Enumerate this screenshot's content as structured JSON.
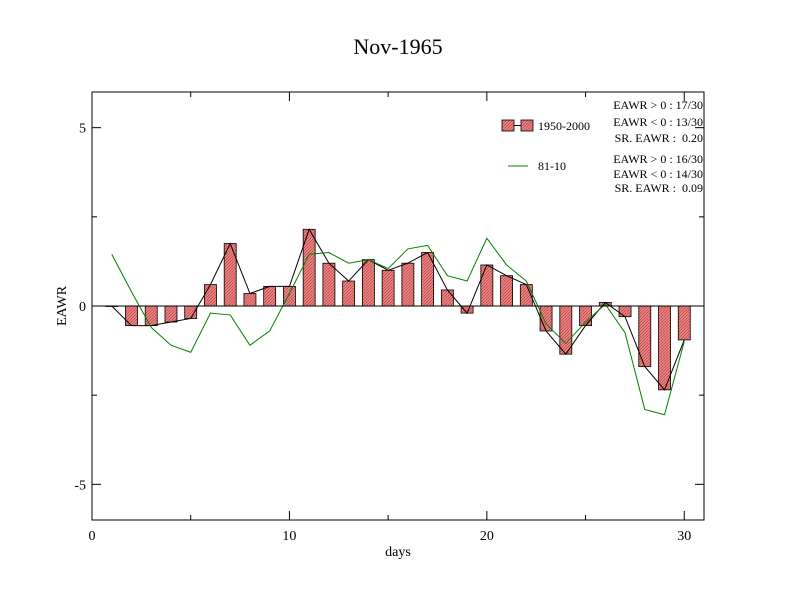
{
  "chart_data": {
    "type": "bar",
    "title": "Nov-1965",
    "xlabel": "days",
    "ylabel": "EAWR",
    "xlim": [
      0,
      31
    ],
    "ylim": [
      -6,
      6
    ],
    "x_ticks": [
      0,
      10,
      20,
      30
    ],
    "y_ticks": [
      5,
      0,
      -5
    ],
    "x_tick_labels": [
      "0",
      "10",
      "20",
      "30"
    ],
    "y_tick_labels": [
      "5",
      "0",
      "-5"
    ],
    "days": [
      1,
      2,
      3,
      4,
      5,
      6,
      7,
      8,
      9,
      10,
      11,
      12,
      13,
      14,
      15,
      16,
      17,
      18,
      19,
      20,
      21,
      22,
      23,
      24,
      25,
      26,
      27,
      28,
      29,
      30
    ],
    "series": [
      {
        "name": "1950-2000",
        "style": "bar+line",
        "bar_color": "#f08080",
        "line_color": "#000000",
        "values": [
          0.0,
          -0.55,
          -0.55,
          -0.45,
          -0.35,
          0.6,
          1.75,
          0.35,
          0.55,
          0.55,
          2.15,
          1.2,
          0.7,
          1.3,
          1.0,
          1.2,
          1.5,
          0.45,
          -0.2,
          1.15,
          0.85,
          0.6,
          -0.7,
          -1.35,
          -0.55,
          0.1,
          -0.3,
          -1.7,
          -2.35,
          -0.95
        ]
      },
      {
        "name": "81-10",
        "style": "line",
        "line_color": "#008000",
        "values": [
          1.45,
          0.4,
          -0.6,
          -1.1,
          -1.3,
          -0.2,
          -0.25,
          -1.1,
          -0.7,
          0.35,
          1.45,
          1.5,
          1.2,
          1.3,
          1.05,
          1.6,
          1.7,
          0.85,
          0.7,
          1.9,
          1.15,
          0.7,
          -0.5,
          -1.05,
          -0.45,
          0.05,
          -0.75,
          -2.9,
          -3.05,
          -1.0
        ]
      }
    ],
    "legend": {
      "position": "top-right",
      "entries": [
        "1950-2000",
        "81-10"
      ]
    },
    "stats": [
      {
        "series": "1950-2000",
        "lines": [
          "EAWR > 0 : 17/30",
          "EAWR < 0 : 13/30",
          "SR. EAWR :  0.20"
        ]
      },
      {
        "series": "81-10",
        "lines": [
          "EAWR > 0 : 16/30",
          "EAWR < 0 : 14/30",
          "SR. EAWR :  0.09"
        ]
      }
    ]
  }
}
